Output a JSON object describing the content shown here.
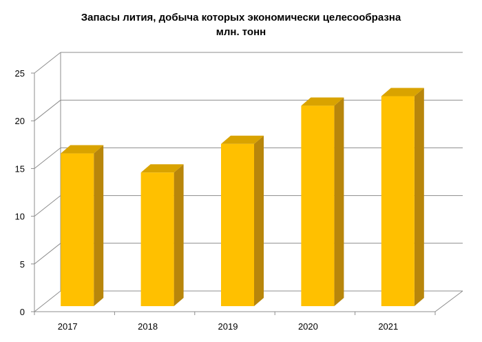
{
  "chart_data": {
    "type": "bar",
    "title_lines": [
      "Запасы лития, добыча которых экономически целесообразна",
      "млн. тонн"
    ],
    "categories": [
      "2017",
      "2018",
      "2019",
      "2020",
      "2021"
    ],
    "values": [
      16,
      14,
      17,
      21,
      22
    ],
    "yticks": [
      "0",
      "5",
      "10",
      "15",
      "20",
      "25"
    ],
    "ylim": [
      0,
      25
    ],
    "grid": true,
    "legend": "none",
    "colors": {
      "bar_front": "#FFC000",
      "bar_side": "#B8860B",
      "bar_top": "#D9A300",
      "grid": "#8C8C8C",
      "axis": "#8C8C8C"
    }
  }
}
